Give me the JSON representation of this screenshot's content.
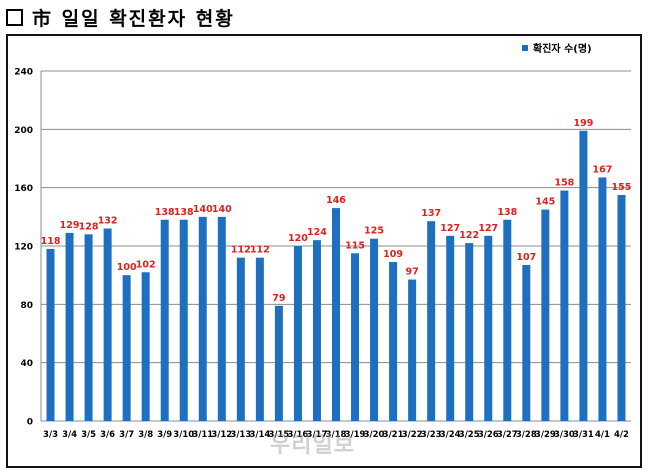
{
  "header": {
    "title": "市 일일 확진환자 현황"
  },
  "watermark": "우리일보",
  "chart_data": {
    "type": "bar",
    "title": "",
    "xlabel": "",
    "ylabel": "",
    "ylim": [
      0,
      240
    ],
    "yticks": [
      0,
      40,
      80,
      120,
      160,
      200,
      240
    ],
    "grid": true,
    "legend": "top-right",
    "bar_color": "#1f6fc0",
    "label_color": "#e02020",
    "categories": [
      "3/3",
      "3/4",
      "3/5",
      "3/6",
      "3/7",
      "3/8",
      "3/9",
      "3/10",
      "3/11",
      "3/12",
      "3/13",
      "3/14",
      "3/15",
      "3/16",
      "3/17",
      "3/18",
      "3/19",
      "3/20",
      "3/21",
      "3/22",
      "3/23",
      "3/24",
      "3/25",
      "3/26",
      "3/27",
      "3/28",
      "3/29",
      "3/30",
      "3/31",
      "4/1",
      "4/2"
    ],
    "series": [
      {
        "name": "확진자 수(명)",
        "values": [
          118,
          129,
          128,
          132,
          100,
          102,
          138,
          138,
          140,
          140,
          112,
          112,
          79,
          120,
          124,
          146,
          115,
          125,
          109,
          97,
          137,
          127,
          122,
          127,
          138,
          107,
          145,
          158,
          199,
          167,
          155
        ]
      }
    ]
  }
}
